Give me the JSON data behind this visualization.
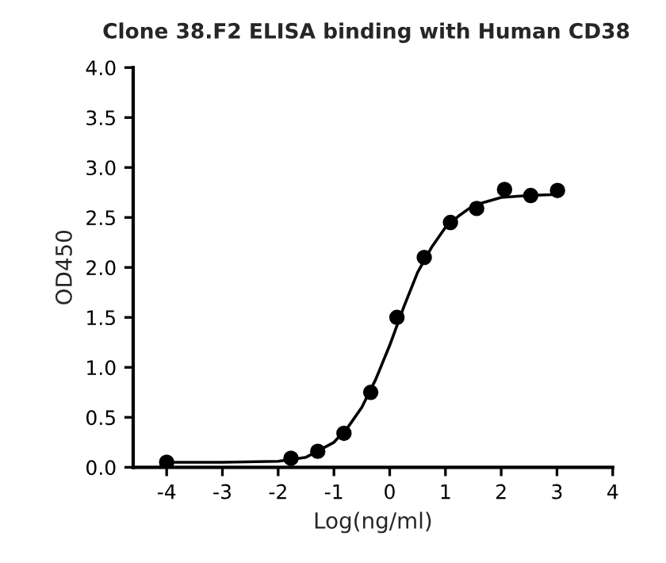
{
  "chart_data": {
    "type": "scatter",
    "title": "Clone 38.F2 ELISA binding with Human CD38",
    "xlabel": "Log(ng/ml)",
    "ylabel": "OD450",
    "xlim": [
      -4.6,
      4
    ],
    "xticks": [
      -4,
      -3,
      -2,
      -1,
      0,
      1,
      2,
      3,
      4
    ],
    "ylim": [
      0,
      4
    ],
    "yticks": [
      {
        "value": 0,
        "label": "0.0"
      },
      {
        "value": 0.5,
        "label": "0.5"
      },
      {
        "value": 1,
        "label": "1.0"
      },
      {
        "value": 1.5,
        "label": "1.5"
      },
      {
        "value": 2,
        "label": "2.0"
      },
      {
        "value": 2.5,
        "label": "2.5"
      },
      {
        "value": 3,
        "label": "3.0"
      },
      {
        "value": 3.5,
        "label": "3.5"
      },
      {
        "value": 4,
        "label": "4.0"
      }
    ],
    "grid": false,
    "legend": false,
    "series": [
      {
        "color": "#000000",
        "marker": "circle",
        "x": [
          -4,
          -1.77,
          -1.29,
          -0.82,
          -0.34,
          0.13,
          0.62,
          1.09,
          1.56,
          2.06,
          2.53,
          3.01
        ],
        "values": [
          0.05,
          0.09,
          0.16,
          0.34,
          0.75,
          1.5,
          2.1,
          2.45,
          2.59,
          2.78,
          2.72,
          2.77
        ]
      },
      {
        "type": "line",
        "color": "#000000",
        "marker": "none",
        "line_style": "solid",
        "x": [
          -4,
          -3,
          -2,
          -1.5,
          -1,
          -0.75,
          -0.5,
          -0.25,
          0,
          0.25,
          0.5,
          0.75,
          1,
          1.25,
          1.5,
          2,
          2.5,
          3
        ],
        "values": [
          0.05,
          0.05,
          0.06,
          0.1,
          0.25,
          0.4,
          0.6,
          0.88,
          1.22,
          1.6,
          1.95,
          2.2,
          2.4,
          2.52,
          2.62,
          2.7,
          2.72,
          2.73
        ]
      }
    ]
  }
}
